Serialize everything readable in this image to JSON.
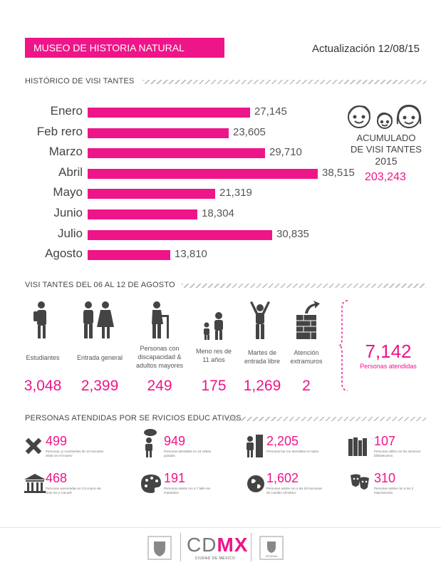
{
  "header": {
    "title": "MUSEO DE HISTORIA NATURAL",
    "update": "Actualización 12/08/15"
  },
  "historico": {
    "title": "HISTÓRICO DE VISI    TANTES"
  },
  "chart_data": {
    "type": "bar",
    "orientation": "horizontal",
    "categories": [
      "Enero",
      "Feb rero",
      "Marzo",
      "Abril",
      "Mayo",
      "Junio",
      "Julio",
      "Agosto"
    ],
    "values": [
      27145,
      23605,
      29710,
      38515,
      21319,
      18304,
      30835,
      13810
    ],
    "value_labels": [
      "27,145",
      "23,605",
      "29,710",
      "38,515",
      "21,319",
      "18,304",
      "30,835",
      "13,810"
    ],
    "bar_color": "#ee1589",
    "xlim": [
      0,
      38515
    ]
  },
  "acumulado": {
    "line1": "ACUMULADO",
    "line2": "DE VISI  TANTES",
    "year": "2015",
    "value": "203,243",
    "icon": "family-faces-icon"
  },
  "semana": {
    "title": "VISI TANTES DEL 06 AL 12 DE AGOSTO",
    "categories": [
      {
        "label": "Estudiantes",
        "value": "3,048",
        "icon": "student-icon"
      },
      {
        "label": "Entrada general",
        "value": "2,399",
        "icon": "couple-icon"
      },
      {
        "label": "Personas con discapacidad & adultos mayores",
        "value": "249",
        "icon": "elder-icon"
      },
      {
        "label": "Meno res de 11 años",
        "value": "175",
        "icon": "child-icon"
      },
      {
        "label": "Martes de entrada libre",
        "value": "1,269",
        "icon": "free-entry-icon"
      },
      {
        "label": "Atención extramuros",
        "value": "2",
        "icon": "outreach-wall-icon"
      }
    ],
    "total": {
      "value": "7,142",
      "label": "Personas    atendidas"
    }
  },
  "educativos": {
    "title": "PERSONAS      ATENDIDAS POR SE       RVICIOS EDUC    ATIVOS",
    "items": [
      {
        "value": "499",
        "desc": "Personas, jo   rovenientes de 10 escuelas visita    ron el museo",
        "icon": "tools-icon"
      },
      {
        "value": "949",
        "desc": "Personas atendidas en 43 visitas guiadas",
        "icon": "guide-icon"
      },
      {
        "value": "2,205",
        "desc": "Personas fue    ron atendidas en salas",
        "icon": "attendant-icon"
      },
      {
        "value": "107",
        "desc": "Personas utiliza    ron los servicios bibliotecarios",
        "icon": "books-icon"
      },
      {
        "value": "468",
        "desc": "Personas asesoradas en Cá ricamo de Dolo   res y Cacuell",
        "icon": "museum-building-icon"
      },
      {
        "value": "191",
        "desc": "Personas asistie    ron a 7 talle res impartidos",
        "icon": "palette-icon"
      },
      {
        "value": "1,602",
        "desc": "Personas asistie    ron a las 26 funciones de Cambio Climático",
        "icon": "globe-icon"
      },
      {
        "value": "310",
        "desc": "Personas asistie    ron a los 2 espectáculos",
        "icon": "theater-masks-icon"
      }
    ]
  },
  "footer": {
    "brand_cd": "CD",
    "brand_mx": "MX",
    "brand_sub": "CIUDAD DE MÉXICO",
    "sedema": "SEDEMA"
  }
}
